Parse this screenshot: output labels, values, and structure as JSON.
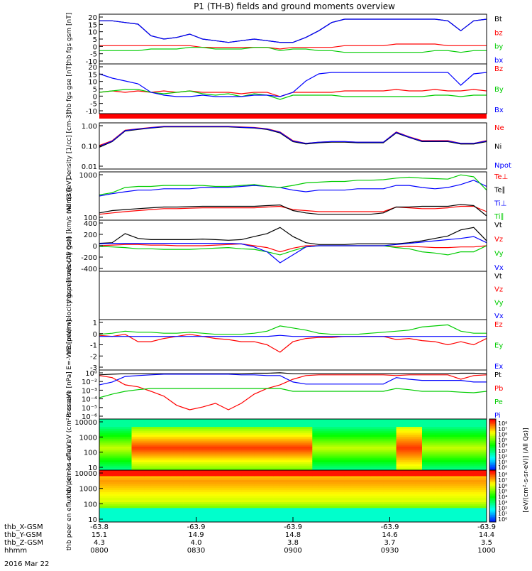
{
  "title": "P1 (TH-B) fields and ground moments overview",
  "date_label": "2016 Mar 22",
  "colorbar_label": "[eV/(cm²-s-sr-eV)] (All Qs)]",
  "colorbar_ticks": [
    "10⁸",
    "10⁷",
    "10⁶",
    "10⁵",
    "10⁴",
    "10³",
    "10²",
    "10¹",
    "10⁰"
  ],
  "ephem": {
    "rows": [
      {
        "label": "thb_X-GSM",
        "values": [
          "-63.8",
          "-63.9",
          "-63.9",
          "-63.9",
          "-63.9"
        ]
      },
      {
        "label": "thb_Y-GSM",
        "values": [
          "15.1",
          "14.9",
          "14.8",
          "14.6",
          "14.4"
        ]
      },
      {
        "label": "thb_Z-GSM",
        "values": [
          "4.3",
          "4.0",
          "3.8",
          "3.7",
          "3.5"
        ]
      },
      {
        "label": "hhmm",
        "values": [
          "0800",
          "0830",
          "0900",
          "0930",
          "1000"
        ]
      }
    ]
  },
  "chart_data": [
    {
      "type": "line",
      "name": "fgs_gsm",
      "ylabel": "thb fgs gsm [nT]",
      "ylim": [
        -10,
        20
      ],
      "yticks": [
        "20",
        "15",
        "10",
        "5",
        "0",
        "-5",
        "-10"
      ],
      "series": [
        {
          "name": "Bt",
          "color": "#000000",
          "values": [
            16,
            16,
            15,
            14,
            7,
            5,
            6,
            8,
            5,
            4,
            3,
            4,
            5,
            4,
            3,
            3,
            6,
            10,
            15,
            17,
            17,
            17,
            17,
            17,
            17,
            17,
            17,
            16,
            10,
            16,
            17
          ]
        },
        {
          "name": "bz",
          "color": "#ff0000",
          "values": [
            1,
            1,
            1,
            1,
            1,
            1,
            1,
            1,
            0,
            0,
            0,
            0,
            0,
            0,
            -1,
            0,
            0,
            0,
            0,
            1,
            1,
            1,
            1,
            2,
            2,
            2,
            2,
            1,
            1,
            1,
            1
          ]
        },
        {
          "name": "by",
          "color": "#00cc00",
          "values": [
            -2,
            -2,
            -2,
            -2,
            -1,
            -1,
            -1,
            0,
            0,
            -1,
            -1,
            -1,
            0,
            0,
            -2,
            -1,
            -1,
            -2,
            -2,
            -3,
            -3,
            -3,
            -3,
            -3,
            -3,
            -3,
            -2,
            -2,
            -3,
            -2,
            -2
          ]
        },
        {
          "name": "bx",
          "color": "#0000ff",
          "values": [
            16,
            16,
            15,
            14,
            7,
            5,
            6,
            8,
            5,
            4,
            3,
            4,
            5,
            4,
            3,
            3,
            6,
            10,
            15,
            17,
            17,
            17,
            17,
            17,
            17,
            17,
            17,
            16,
            10,
            16,
            17
          ]
        }
      ]
    },
    {
      "type": "line",
      "name": "fgs_gse",
      "ylabel": "thb fgs gse [nT]",
      "ylim": [
        -15,
        20
      ],
      "yticks": [
        "20",
        "15",
        "10",
        "5",
        "0",
        "-5",
        "-10"
      ],
      "series": [
        {
          "name": "Bz",
          "color": "#ff0000",
          "values": [
            0,
            1,
            0,
            1,
            0,
            1,
            0,
            1,
            0,
            0,
            0,
            -1,
            0,
            0,
            -3,
            0,
            0,
            0,
            0,
            1,
            1,
            1,
            1,
            2,
            1,
            1,
            2,
            1,
            1,
            2,
            1
          ]
        },
        {
          "name": "By",
          "color": "#00cc00",
          "values": [
            0,
            1,
            2,
            2,
            0,
            -1,
            0,
            1,
            -1,
            -2,
            -1,
            -3,
            -1,
            -2,
            -5,
            -2,
            -2,
            -2,
            -2,
            -3,
            -3,
            -3,
            -3,
            -3,
            -3,
            -3,
            -2,
            -2,
            -3,
            -2,
            -2
          ]
        },
        {
          "name": "Bx",
          "color": "#0000ff",
          "values": [
            13,
            10,
            8,
            6,
            0,
            -2,
            -3,
            -3,
            -2,
            -3,
            -3,
            -3,
            -2,
            -2,
            -3,
            0,
            8,
            13,
            14,
            14,
            14,
            14,
            14,
            14,
            14,
            14,
            14,
            14,
            5,
            13,
            14
          ]
        }
      ]
    },
    {
      "type": "line",
      "name": "density",
      "ylabel": "Density [1/cc] [cm-3]",
      "scale": "log",
      "ylim": [
        0.01,
        1.3
      ],
      "yticks": [
        "1.00",
        "0.10",
        "0.01"
      ],
      "series": [
        {
          "name": "Ne",
          "color": "#ff0000",
          "values": [
            0.12,
            0.2,
            0.6,
            0.7,
            0.8,
            0.9,
            0.9,
            0.9,
            0.9,
            0.9,
            0.9,
            0.85,
            0.8,
            0.7,
            0.5,
            0.2,
            0.15,
            0.17,
            0.18,
            0.18,
            0.17,
            0.17,
            0.17,
            0.5,
            0.3,
            0.2,
            0.2,
            0.2,
            0.15,
            0.15,
            0.2
          ]
        },
        {
          "name": "Ni",
          "color": "#000000",
          "values": [
            0.1,
            0.18,
            0.55,
            0.65,
            0.75,
            0.85,
            0.85,
            0.85,
            0.85,
            0.85,
            0.85,
            0.8,
            0.75,
            0.65,
            0.45,
            0.18,
            0.14,
            0.16,
            0.17,
            0.17,
            0.16,
            0.16,
            0.16,
            0.45,
            0.28,
            0.18,
            0.18,
            0.18,
            0.14,
            0.14,
            0.18
          ]
        },
        {
          "name": "Npot",
          "color": "#0000ff",
          "values": [
            0.11,
            0.19,
            0.58,
            0.68,
            0.78,
            0.88,
            0.88,
            0.88,
            0.88,
            0.88,
            0.88,
            0.82,
            0.78,
            0.68,
            0.48,
            0.19,
            0.15,
            0.17,
            0.18,
            0.18,
            0.17,
            0.17,
            0.17,
            0.48,
            0.29,
            0.19,
            0.19,
            0.19,
            0.15,
            0.15,
            0.19
          ]
        }
      ]
    },
    {
      "type": "line",
      "name": "temperature",
      "ylabel": "mom3 [eV]",
      "scale": "log",
      "ylim": [
        40,
        4000
      ],
      "yticks": [
        "1000",
        "100"
      ],
      "series": [
        {
          "name": "Te⊥",
          "color": "#ff0000",
          "values": [
            70,
            80,
            90,
            100,
            110,
            120,
            120,
            125,
            130,
            130,
            130,
            130,
            130,
            140,
            150,
            110,
            100,
            90,
            90,
            90,
            90,
            90,
            90,
            140,
            130,
            120,
            120,
            130,
            150,
            150,
            90
          ]
        },
        {
          "name": "Te∥",
          "color": "#000000",
          "values": [
            80,
            100,
            110,
            120,
            130,
            140,
            140,
            145,
            150,
            150,
            150,
            150,
            150,
            160,
            170,
            100,
            80,
            70,
            70,
            70,
            70,
            70,
            80,
            140,
            140,
            150,
            150,
            150,
            180,
            160,
            60
          ]
        },
        {
          "name": "Ti⊥",
          "color": "#0000ff",
          "values": [
            400,
            500,
            600,
            700,
            700,
            800,
            800,
            800,
            900,
            900,
            900,
            1000,
            1100,
            1000,
            900,
            700,
            600,
            700,
            700,
            700,
            800,
            800,
            800,
            1100,
            1100,
            900,
            800,
            900,
            1200,
            1800,
            1000
          ]
        },
        {
          "name": "Ti∥",
          "color": "#00cc00",
          "values": [
            450,
            550,
            900,
            1000,
            1000,
            1100,
            1100,
            1100,
            1100,
            1000,
            1000,
            1100,
            1200,
            1000,
            900,
            1100,
            1400,
            1500,
            1600,
            1600,
            1800,
            1800,
            1900,
            2200,
            2400,
            2200,
            2100,
            2000,
            3000,
            2500,
            700
          ]
        }
      ]
    },
    {
      "type": "line",
      "name": "peir_velocity",
      "ylabel": "thb peir velocity gsm [km/s (All Qs)]",
      "ylim": [
        -420,
        420
      ],
      "yticks": [
        "400",
        "200",
        "0",
        "-200",
        "-400"
      ],
      "series": [
        {
          "name": "Vt",
          "color": "#000000",
          "values": [
            40,
            50,
            200,
            120,
            100,
            100,
            100,
            100,
            110,
            100,
            90,
            100,
            150,
            200,
            300,
            150,
            50,
            20,
            20,
            20,
            30,
            30,
            30,
            30,
            50,
            80,
            120,
            160,
            260,
            300,
            80
          ]
        },
        {
          "name": "Vz",
          "color": "#ff0000",
          "values": [
            0,
            10,
            20,
            20,
            10,
            10,
            0,
            0,
            0,
            10,
            20,
            30,
            0,
            -30,
            -100,
            -40,
            0,
            0,
            0,
            0,
            0,
            0,
            0,
            -20,
            -10,
            -20,
            -30,
            -30,
            -20,
            -20,
            0
          ]
        },
        {
          "name": "Vy",
          "color": "#00cc00",
          "values": [
            -10,
            -20,
            -30,
            -50,
            -50,
            -60,
            -60,
            -60,
            -50,
            -40,
            -30,
            -50,
            -60,
            -100,
            -150,
            -80,
            -20,
            0,
            0,
            0,
            0,
            0,
            0,
            -30,
            -50,
            -100,
            -120,
            -150,
            -100,
            -100,
            0
          ]
        },
        {
          "name": "Vx",
          "color": "#0000ff",
          "values": [
            30,
            40,
            40,
            40,
            40,
            40,
            40,
            40,
            40,
            40,
            40,
            30,
            -20,
            -100,
            -280,
            -150,
            -20,
            0,
            0,
            0,
            0,
            0,
            0,
            20,
            40,
            60,
            80,
            100,
            120,
            150,
            50
          ]
        }
      ]
    },
    {
      "type": "line",
      "name": "peer_velocity",
      "ylabel": "thb peer velocity gsm [km/s (All Qs)]",
      "ylim": [
        -420,
        420
      ],
      "yticks": [],
      "series": [
        {
          "name": "Vt",
          "color": "#000000",
          "values": []
        },
        {
          "name": "Vz",
          "color": "#ff0000",
          "values": []
        },
        {
          "name": "Vy",
          "color": "#00cc00",
          "values": []
        },
        {
          "name": "Vx",
          "color": "#0000ff",
          "values": []
        }
      ]
    },
    {
      "type": "line",
      "name": "efield",
      "ylabel": "E=-VxB [mV/m]",
      "ylim": [
        -3.2,
        1.6
      ],
      "yticks": [
        "1",
        "0",
        "-1",
        "-2",
        "-3"
      ],
      "series": [
        {
          "name": "Ez",
          "color": "#ff0000",
          "values": [
            0.1,
            0,
            0.2,
            -0.5,
            -0.5,
            -0.2,
            0,
            0.2,
            0,
            -0.2,
            -0.3,
            -0.5,
            -0.5,
            -0.8,
            -1.5,
            -0.5,
            -0.2,
            -0.1,
            -0.1,
            0,
            0,
            0,
            0,
            -0.3,
            -0.2,
            -0.4,
            -0.5,
            -0.8,
            -0.5,
            -0.8,
            -0.2
          ]
        },
        {
          "name": "Ey",
          "color": "#00cc00",
          "values": [
            0.2,
            0.3,
            0.5,
            0.4,
            0.4,
            0.3,
            0.3,
            0.4,
            0.3,
            0.2,
            0.2,
            0.2,
            0.3,
            0.5,
            1.0,
            0.8,
            0.6,
            0.3,
            0.2,
            0.2,
            0.2,
            0.3,
            0.4,
            0.5,
            0.6,
            0.9,
            1.0,
            1.1,
            0.5,
            0.3,
            0.3
          ]
        },
        {
          "name": "Ex",
          "color": "#0000ff",
          "values": [
            0,
            0,
            0,
            0,
            0,
            0,
            0,
            0,
            0,
            0,
            0,
            0,
            0,
            0,
            0.1,
            0,
            0,
            0,
            0,
            0,
            0,
            0,
            0,
            0,
            0,
            0,
            0,
            0,
            0,
            0,
            0
          ]
        }
      ]
    },
    {
      "type": "line",
      "name": "pressure",
      "ylabel": "Pressure [nPa]",
      "scale": "log",
      "ylim": [
        1e-06,
        0.2
      ],
      "yticks": [
        "10⁰",
        "10⁻²",
        "10⁻³",
        "10⁻⁴",
        "10⁻⁵",
        "10⁻⁶"
      ],
      "series": [
        {
          "name": "Pt",
          "color": "#000000",
          "values": [
            0.06,
            0.07,
            0.08,
            0.08,
            0.08,
            0.08,
            0.08,
            0.08,
            0.08,
            0.08,
            0.08,
            0.08,
            0.09,
            0.09,
            0.1,
            0.08,
            0.08,
            0.08,
            0.08,
            0.08,
            0.08,
            0.08,
            0.08,
            0.08,
            0.08,
            0.08,
            0.08,
            0.08,
            0.09,
            0.09,
            0.08
          ]
        },
        {
          "name": "Pb",
          "color": "#ff0000",
          "values": [
            0.05,
            0.03,
            0.005,
            0.003,
            0.001,
            0.0003,
            3e-05,
            1e-05,
            2e-05,
            5e-05,
            1e-05,
            5e-05,
            0.0005,
            0.002,
            0.005,
            0.02,
            0.05,
            0.06,
            0.06,
            0.06,
            0.06,
            0.06,
            0.06,
            0.05,
            0.06,
            0.06,
            0.06,
            0.06,
            0.02,
            0.05,
            0.06
          ]
        },
        {
          "name": "Pe",
          "color": "#00cc00",
          "values": [
            0.0002,
            0.0005,
            0.001,
            0.0015,
            0.002,
            0.002,
            0.002,
            0.002,
            0.002,
            0.002,
            0.002,
            0.002,
            0.002,
            0.002,
            0.002,
            0.001,
            0.001,
            0.001,
            0.001,
            0.001,
            0.001,
            0.001,
            0.001,
            0.002,
            0.0015,
            0.001,
            0.001,
            0.001,
            0.0008,
            0.0007,
            0.001
          ]
        },
        {
          "name": "Pi",
          "color": "#0000ff",
          "values": [
            0.005,
            0.01,
            0.04,
            0.05,
            0.06,
            0.07,
            0.07,
            0.07,
            0.07,
            0.07,
            0.07,
            0.06,
            0.06,
            0.05,
            0.05,
            0.01,
            0.006,
            0.006,
            0.006,
            0.006,
            0.006,
            0.006,
            0.006,
            0.03,
            0.02,
            0.015,
            0.015,
            0.015,
            0.015,
            0.01,
            0.01
          ]
        }
      ]
    },
    {
      "type": "heatmap",
      "name": "peir_en_eflux",
      "ylabel": "thb peir en eflux eV (cm²-s-sr-eV)",
      "scale": "log",
      "ylim": [
        7,
        20000
      ],
      "yticks": [
        "10000",
        "1000",
        "100",
        "10"
      ]
    },
    {
      "type": "heatmap",
      "name": "peer_en_eflux",
      "ylabel": "thb peer en eflux eV (cm²-s-sr-eV)",
      "scale": "log",
      "ylim": [
        7,
        20000
      ],
      "yticks": [
        "10000",
        "1000",
        "100",
        "10"
      ]
    }
  ]
}
